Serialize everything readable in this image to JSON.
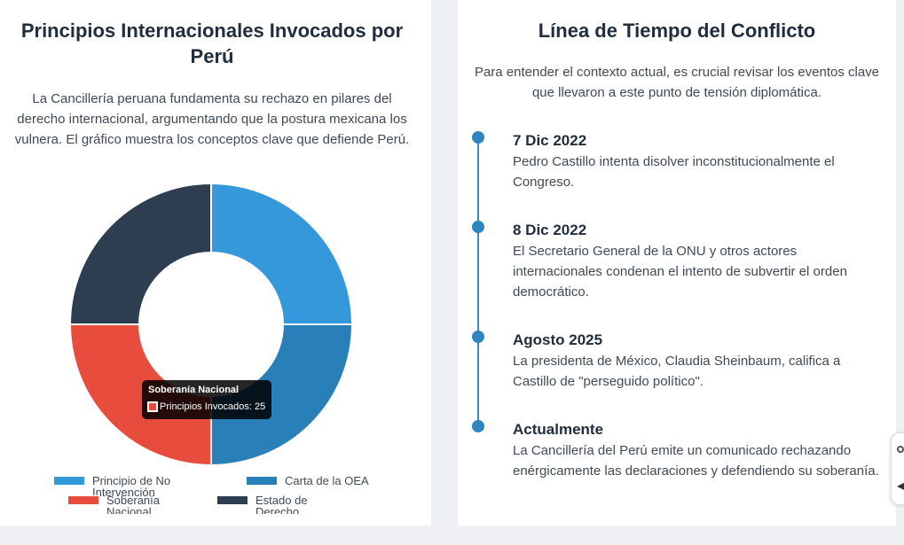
{
  "left": {
    "title": "Principios Internacionales Invocados por Perú",
    "description": "La Cancillería peruana fundamenta su rechazo en pilares del derecho internacional, argumentando que la postura mexicana los vulnera. El gráfico muestra los conceptos clave que defiende Perú."
  },
  "chart_data": {
    "type": "pie",
    "variant": "doughnut",
    "categories": [
      "Principio de No Intervención",
      "Carta de la OEA",
      "Soberanía Nacional",
      "Estado de Derecho"
    ],
    "series": [
      {
        "name": "Principios Invocados",
        "values": [
          25,
          25,
          25,
          25
        ]
      }
    ],
    "colors": [
      "#3498db",
      "#2980b9",
      "#e74c3c",
      "#2c3e50"
    ],
    "legend_position": "bottom",
    "tooltip": {
      "title": "Soberanía Nacional",
      "label": "Principios Invocados: 25"
    }
  },
  "right": {
    "title": "Línea de Tiempo del Conflicto",
    "description": "Para entender el contexto actual, es crucial revisar los eventos clave que llevaron a este punto de tensión diplomática.",
    "events": [
      {
        "date": "7 Dic 2022",
        "text": "Pedro Castillo intenta disolver inconstitucionalmente el Congreso."
      },
      {
        "date": "8 Dic 2022",
        "text": "El Secretario General de la ONU y otros actores internacionales condenan el intento de subvertir el orden democrático."
      },
      {
        "date": "Agosto 2025",
        "text": "La presidenta de México, Claudia Sheinbaum, califica a Castillo de \"perseguido político\"."
      },
      {
        "date": "Actualmente",
        "text": "La Cancillería del Perú emite un comunicado rechazando enérgicamente las declaraciones y defendiendo su soberanía."
      }
    ]
  },
  "colors": {
    "accent": "#2e86c1",
    "title": "#1f2d3d",
    "background": "#eef0f3"
  }
}
